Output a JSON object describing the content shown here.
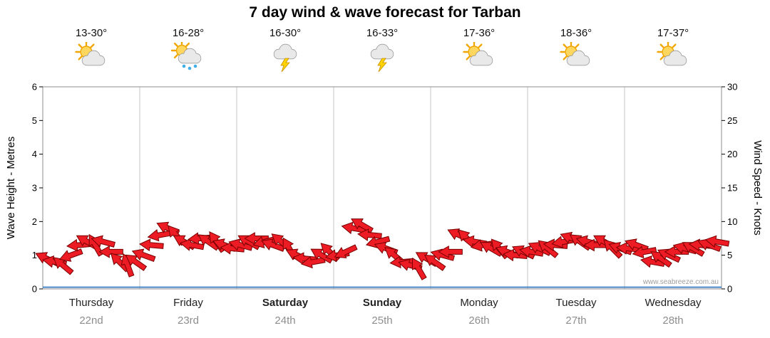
{
  "title": "7 day wind & wave forecast for Tarban",
  "watermark": "www.seabreeze.com.au",
  "colors": {
    "arrow_fill": "#ed1c24",
    "arrow_stroke": "#7a0000",
    "grid": "#c4c4c4",
    "border": "#8c8c8c",
    "wave_line": "#4a86c8",
    "tick_text": "#000000",
    "date_text": "#8e8e8e",
    "watermark_text": "#9e9e9e",
    "sun": "#ffd75e",
    "sun_stroke": "#f0a500",
    "cloud": "#e9e9e9",
    "cloud_stroke": "#8f8f8f",
    "rain": "#41b0e8",
    "bolt": "#ffd400",
    "bolt_stroke": "#c98f00"
  },
  "days": [
    {
      "name": "Thursday",
      "date": "22nd",
      "temp": "13-30°",
      "icon": "partly-cloudy",
      "bold": false
    },
    {
      "name": "Friday",
      "date": "23rd",
      "temp": "16-28°",
      "icon": "showers",
      "bold": false
    },
    {
      "name": "Saturday",
      "date": "24th",
      "temp": "16-30°",
      "icon": "thunderstorm",
      "bold": true
    },
    {
      "name": "Sunday",
      "date": "25th",
      "temp": "16-33°",
      "icon": "thunderstorm",
      "bold": true
    },
    {
      "name": "Monday",
      "date": "26th",
      "temp": "17-36°",
      "icon": "partly-cloudy",
      "bold": false
    },
    {
      "name": "Tuesday",
      "date": "27th",
      "temp": "18-36°",
      "icon": "partly-cloudy",
      "bold": false
    },
    {
      "name": "Wednesday",
      "date": "28th",
      "temp": "17-37°",
      "icon": "partly-cloudy",
      "bold": false
    }
  ],
  "chart_data": {
    "type": "scatter",
    "marker": "wind-direction-arrow",
    "title": "7 day wind & wave forecast for Tarban",
    "x_categories": [
      "Thursday 22nd",
      "Friday 23rd",
      "Saturday 24th",
      "Sunday 25th",
      "Monday 26th",
      "Tuesday 27th",
      "Wednesday 28th"
    ],
    "samples_per_day": 12,
    "y_left": {
      "label": "Wave Height - Metres",
      "range": [
        0,
        6
      ],
      "ticks": [
        0,
        1,
        2,
        3,
        4,
        5,
        6
      ]
    },
    "y_right": {
      "label": "Wind Speed - Knots",
      "range": [
        0,
        30
      ],
      "ticks": [
        0,
        5,
        10,
        15,
        20,
        25,
        30
      ]
    },
    "grid": "vertical-day-separators",
    "legend": false,
    "wave_height_m_constant": 0.05,
    "series": [
      {
        "name": "Wind speed and direction",
        "axis": "right",
        "speed_knots": [
          4.5,
          4,
          3.5,
          5,
          6.5,
          7,
          6.5,
          7,
          5.5,
          4,
          3.5,
          4,
          5,
          6.5,
          8,
          9,
          8,
          7,
          6.5,
          7.5,
          7,
          7,
          6.5,
          6,
          6.5,
          7,
          7.5,
          7,
          6.5,
          7,
          6,
          5,
          4.5,
          4,
          5,
          5.5,
          5,
          5.5,
          9,
          9.5,
          8,
          7,
          6,
          5,
          4,
          3.5,
          3,
          4.5,
          4,
          5,
          5.5,
          8,
          7.5,
          7,
          6.5,
          6,
          6,
          5.5,
          5,
          5.5,
          5.5,
          6,
          6,
          6.5,
          7,
          7.5,
          7,
          7,
          6.5,
          7,
          6,
          6,
          6,
          6.5,
          5.5,
          4,
          4.5,
          5,
          5.5,
          6,
          6,
          6.5,
          6.5,
          7
        ],
        "direction_deg": [
          205,
          190,
          220,
          160,
          175,
          210,
          240,
          195,
          180,
          225,
          250,
          215,
          200,
          185,
          170,
          205,
          230,
          210,
          190,
          175,
          215,
          235,
          200,
          185,
          195,
          210,
          180,
          165,
          200,
          220,
          240,
          205,
          185,
          170,
          210,
          225,
          170,
          155,
          190,
          210,
          185,
          165,
          200,
          220,
          175,
          195,
          240,
          210,
          215,
          195,
          180,
          205,
          225,
          190,
          170,
          210,
          230,
          200,
          185,
          205,
          190,
          205,
          220,
          185,
          170,
          200,
          215,
          195,
          180,
          210,
          225,
          200,
          185,
          200,
          170,
          190,
          215,
          205,
          180,
          195,
          210,
          185,
          200,
          190
        ]
      }
    ]
  }
}
